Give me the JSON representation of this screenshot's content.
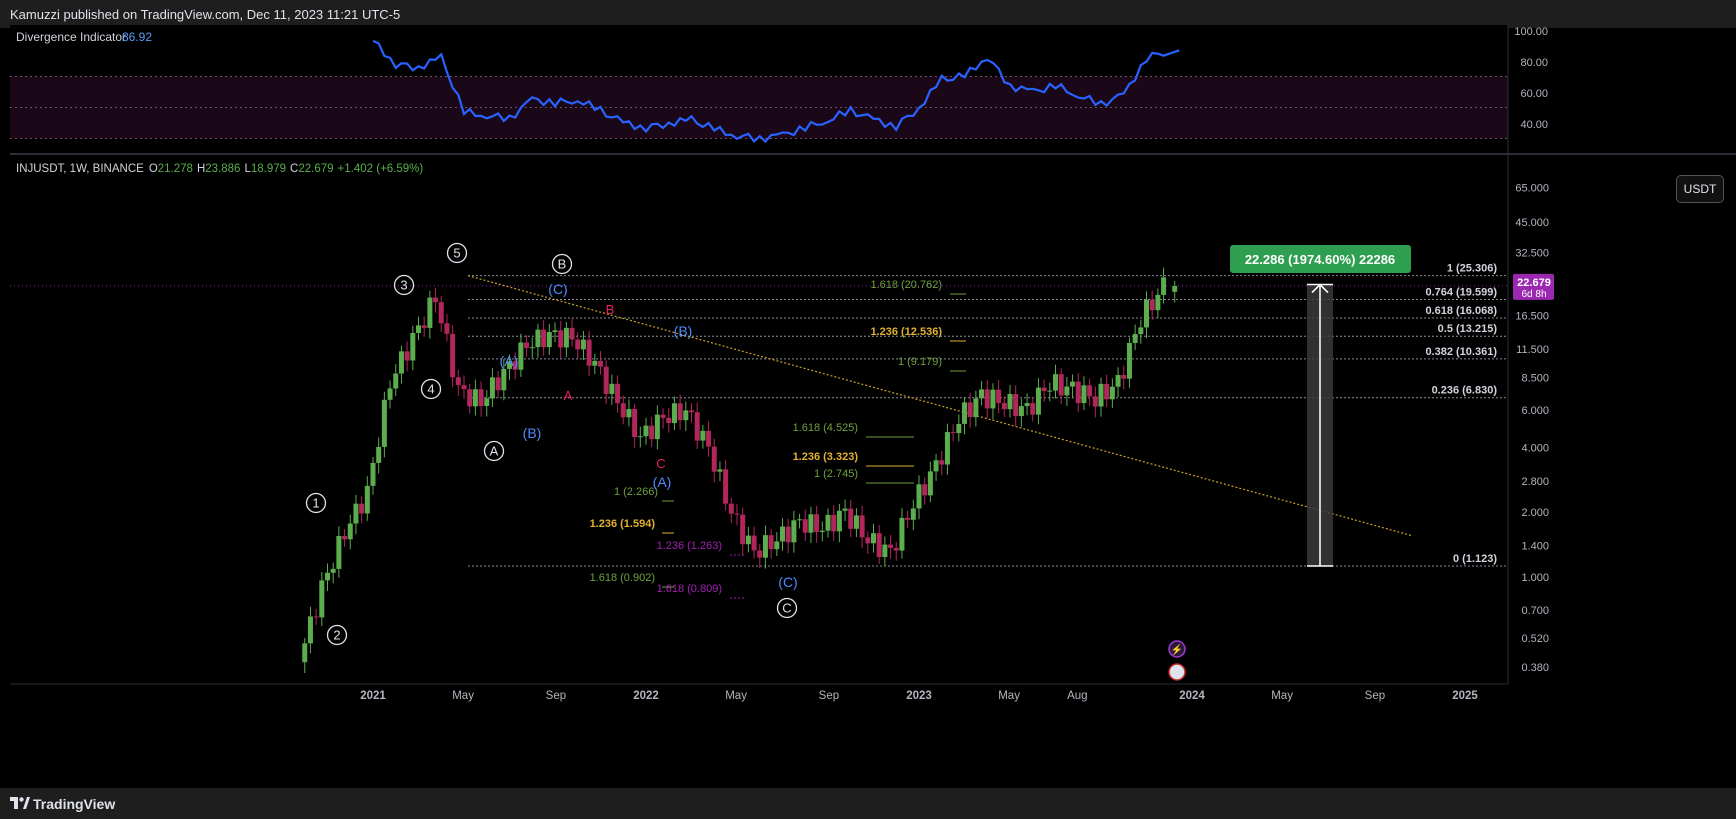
{
  "header": {
    "published": "Kamuzzi published on TradingView.com, Dec 11, 2023 11:21 UTC-5"
  },
  "footer": {
    "brand": "TradingView"
  },
  "indicator": {
    "name": "Divergence Indicator",
    "value": "86.92",
    "axis": [
      "100.00",
      "80.00",
      "60.00",
      "40.00"
    ],
    "color": "#2962ff"
  },
  "legend": {
    "symbol": "INJUSDT, 1W, BINANCE",
    "o_label": "O",
    "o": "21.278",
    "h_label": "H",
    "h": "23.886",
    "l_label": "L",
    "l": "18.979",
    "c_label": "C",
    "c": "22.679",
    "change": "+1.402 (+6.59%)"
  },
  "currency_button": "USDT",
  "price_axis": [
    "65.000",
    "45.000",
    "32.500",
    "22.679",
    "16.500",
    "11.500",
    "8.500",
    "6.000",
    "4.000",
    "2.800",
    "2.000",
    "1.400",
    "1.000",
    "0.700",
    "0.520",
    "0.380"
  ],
  "current_price": {
    "value": "22.679",
    "countdown": "6d 8h",
    "color": "#9c27b0"
  },
  "time_axis": [
    "2021",
    "May",
    "Sep",
    "2022",
    "May",
    "Sep",
    "2023",
    "May",
    "Aug",
    "2024",
    "May",
    "Sep",
    "2025"
  ],
  "measure": {
    "label": "22.286 (1974.60%) 22286",
    "color": "#2e9e50"
  },
  "fib_retracement": [
    {
      "label": "1 (25.306)",
      "price": 25.306
    },
    {
      "label": "0.764 (19.599)",
      "price": 19.599
    },
    {
      "label": "0.618 (16.068)",
      "price": 16.068
    },
    {
      "label": "0.5 (13.215)",
      "price": 13.215
    },
    {
      "label": "0.382 (10.361)",
      "price": 10.361
    },
    {
      "label": "0.236 (6.830)",
      "price": 6.83
    },
    {
      "label": "0 (1.123)",
      "price": 1.123
    }
  ],
  "fib_extensions": [
    {
      "label": "1.618 (20.762)",
      "color": "#6ea13c"
    },
    {
      "label": "1.236 (12.536)",
      "color": "#e0b030"
    },
    {
      "label": "1 (9.179)",
      "color": "#6ea13c"
    },
    {
      "label": "1.618 (4.525)",
      "color": "#6ea13c"
    },
    {
      "label": "1.236 (3.323)",
      "color": "#e0b030"
    },
    {
      "label": "1 (2.745)",
      "color": "#6ea13c"
    },
    {
      "label": "1 (2.266)",
      "color": "#6ea13c"
    },
    {
      "label": "1.236 (1.594)",
      "color": "#e0b030"
    },
    {
      "label": "1.236 (1.263)",
      "color": "#a020b0"
    },
    {
      "label": "1.618 (0.902)",
      "color": "#6ea13c"
    },
    {
      "label": "1.618 (0.809)",
      "color": "#a020b0"
    }
  ],
  "wave_labels": [
    "1",
    "2",
    "3",
    "4",
    "5",
    "A",
    "B",
    "C",
    "(A)",
    "(B)",
    "(C)",
    "A",
    "B",
    "C"
  ],
  "colors": {
    "up": "#5bad4e",
    "down": "#b1265b",
    "blue_wave": "#2962ff",
    "red_wave": "#e91e63",
    "trendline": "#c9a227"
  },
  "chart_data": {
    "type": "candlestick",
    "symbol": "INJUSDT",
    "timeframe": "1W",
    "exchange": "BINANCE",
    "y_scale": "log",
    "ylim": [
      0.33,
      70
    ],
    "x_range": [
      "2020-10",
      "2025-02"
    ],
    "ohlc": {
      "open": 21.278,
      "high": 23.886,
      "low": 18.979,
      "close": 22.679,
      "change": 1.402,
      "change_pct": 6.59
    },
    "approximate_price_path": [
      {
        "date": "2020-10",
        "price": 0.4
      },
      {
        "date": "2020-11",
        "price": 0.9
      },
      {
        "date": "2020-12",
        "price": 1.6
      },
      {
        "date": "2021-01",
        "price": 2.5
      },
      {
        "date": "2021-02",
        "price": 8.0
      },
      {
        "date": "2021-03",
        "price": 13.0
      },
      {
        "date": "2021-04",
        "price": 20.0
      },
      {
        "date": "2021-05",
        "price": 7.5
      },
      {
        "date": "2021-06",
        "price": 6.5
      },
      {
        "date": "2021-07",
        "price": 9.0
      },
      {
        "date": "2021-08",
        "price": 12.0
      },
      {
        "date": "2021-09",
        "price": 13.5
      },
      {
        "date": "2021-10",
        "price": 13.0
      },
      {
        "date": "2021-11",
        "price": 10.0
      },
      {
        "date": "2021-12",
        "price": 6.5
      },
      {
        "date": "2022-01",
        "price": 4.5
      },
      {
        "date": "2022-02",
        "price": 5.5
      },
      {
        "date": "2022-03",
        "price": 6.0
      },
      {
        "date": "2022-04",
        "price": 4.0
      },
      {
        "date": "2022-05",
        "price": 2.0
      },
      {
        "date": "2022-06",
        "price": 1.3
      },
      {
        "date": "2022-07",
        "price": 1.5
      },
      {
        "date": "2022-08",
        "price": 1.8
      },
      {
        "date": "2022-09",
        "price": 1.7
      },
      {
        "date": "2022-10",
        "price": 2.0
      },
      {
        "date": "2022-11",
        "price": 1.5
      },
      {
        "date": "2022-12",
        "price": 1.3
      },
      {
        "date": "2023-01",
        "price": 2.2
      },
      {
        "date": "2023-02",
        "price": 3.3
      },
      {
        "date": "2023-03",
        "price": 5.5
      },
      {
        "date": "2023-04",
        "price": 7.0
      },
      {
        "date": "2023-05",
        "price": 6.5
      },
      {
        "date": "2023-06",
        "price": 6.0
      },
      {
        "date": "2023-07",
        "price": 8.0
      },
      {
        "date": "2023-08",
        "price": 7.5
      },
      {
        "date": "2023-09",
        "price": 6.8
      },
      {
        "date": "2023-10",
        "price": 8.0
      },
      {
        "date": "2023-11",
        "price": 16.0
      },
      {
        "date": "2023-12",
        "price": 22.68
      }
    ],
    "oscillator": [
      {
        "date": "2021-01",
        "value": 93
      },
      {
        "date": "2021-02",
        "value": 78
      },
      {
        "date": "2021-03",
        "value": 76
      },
      {
        "date": "2021-04",
        "value": 82
      },
      {
        "date": "2021-05",
        "value": 47
      },
      {
        "date": "2021-06",
        "value": 45
      },
      {
        "date": "2021-07",
        "value": 43
      },
      {
        "date": "2021-08",
        "value": 55
      },
      {
        "date": "2021-09",
        "value": 53
      },
      {
        "date": "2021-10",
        "value": 55
      },
      {
        "date": "2021-11",
        "value": 48
      },
      {
        "date": "2021-12",
        "value": 40
      },
      {
        "date": "2022-01",
        "value": 37
      },
      {
        "date": "2022-02",
        "value": 40
      },
      {
        "date": "2022-03",
        "value": 42
      },
      {
        "date": "2022-04",
        "value": 36
      },
      {
        "date": "2022-05",
        "value": 32
      },
      {
        "date": "2022-06",
        "value": 30
      },
      {
        "date": "2022-07",
        "value": 32
      },
      {
        "date": "2022-08",
        "value": 37
      },
      {
        "date": "2022-09",
        "value": 42
      },
      {
        "date": "2022-10",
        "value": 48
      },
      {
        "date": "2022-11",
        "value": 42
      },
      {
        "date": "2022-12",
        "value": 38
      },
      {
        "date": "2023-01",
        "value": 50
      },
      {
        "date": "2023-02",
        "value": 68
      },
      {
        "date": "2023-03",
        "value": 70
      },
      {
        "date": "2023-04",
        "value": 83
      },
      {
        "date": "2023-05",
        "value": 64
      },
      {
        "date": "2023-06",
        "value": 60
      },
      {
        "date": "2023-07",
        "value": 64
      },
      {
        "date": "2023-08",
        "value": 58
      },
      {
        "date": "2023-09",
        "value": 52
      },
      {
        "date": "2023-10",
        "value": 58
      },
      {
        "date": "2023-11",
        "value": 82
      },
      {
        "date": "2023-12",
        "value": 86.92
      }
    ]
  }
}
